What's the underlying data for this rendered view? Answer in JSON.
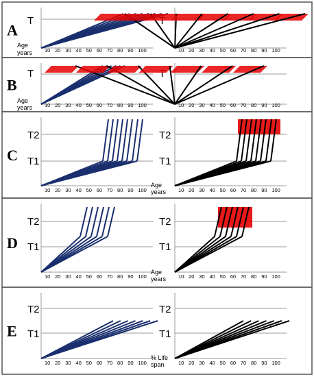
{
  "colors": {
    "blue": "#1a2f6e",
    "red": "#e60000",
    "black": "#000000",
    "grey_line": "#999999",
    "panel_border": "#555555"
  },
  "ticks_age": [
    "10",
    "20",
    "30",
    "40",
    "50",
    "60",
    "70",
    "80",
    "90",
    "100"
  ],
  "panels": [
    {
      "letter": "A",
      "left": {
        "labels": [
          "T"
        ],
        "axis_title": [
          "Age",
          "years"
        ]
      },
      "right": {
        "labels": [
          "T"
        ],
        "axis_title": []
      }
    },
    {
      "letter": "B",
      "left": {
        "labels": [
          "T"
        ],
        "axis_title": [
          "Age",
          "years"
        ]
      },
      "right": {
        "labels": [
          "T"
        ],
        "axis_title": []
      }
    },
    {
      "letter": "C",
      "left": {
        "labels": [
          "T2",
          "T1"
        ],
        "axis_title": []
      },
      "right": {
        "labels": [
          "T2",
          "T1"
        ],
        "axis_title": [
          "Age",
          "years"
        ]
      }
    },
    {
      "letter": "D",
      "left": {
        "labels": [
          "T2",
          "T1"
        ],
        "axis_title": []
      },
      "right": {
        "labels": [
          "T2",
          "T1"
        ],
        "axis_title": [
          "Age",
          "years"
        ]
      }
    },
    {
      "letter": "E",
      "left": {
        "labels": [
          "T2",
          "T1"
        ],
        "axis_title": []
      },
      "right": {
        "labels": [
          "T2",
          "T1"
        ],
        "axis_title": [
          "% Life",
          "span"
        ]
      }
    }
  ]
}
